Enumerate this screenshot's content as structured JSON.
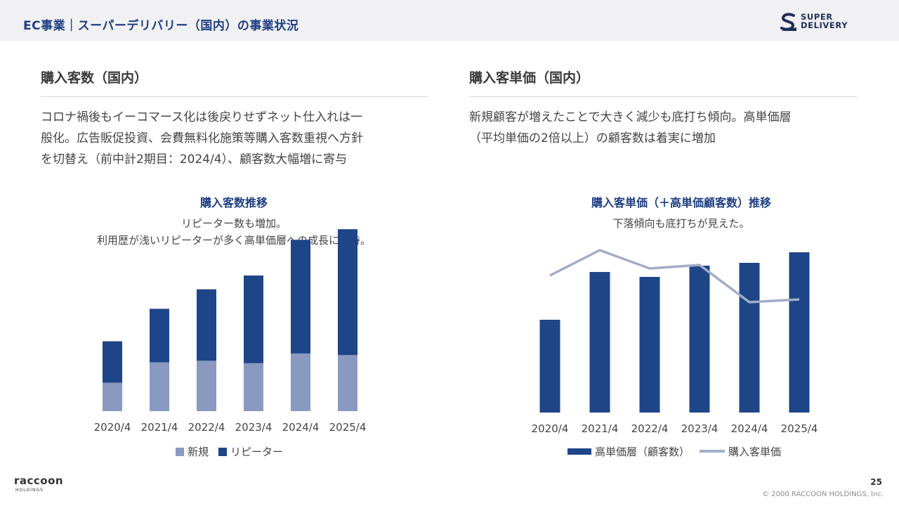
{
  "header": {
    "title": "EC事業｜スーパーデリバリー（国内）の事業状況",
    "brand_line1": "SUPER",
    "brand_line2": "DELIVERY"
  },
  "left": {
    "title": "購入客数（国内）",
    "description": [
      "コロナ禍後もイーコマース化は後戻りせずネット仕入れは一",
      "般化。広告販促投資、会費無料化施策等購入客数重視へ方針",
      "を切替え（前中計2期目：2024/4）、顧客数大幅増に寄与"
    ],
    "chart_title": "購入客数推移",
    "chart_subtitle": [
      "リピーター数も増加。",
      "利用歴が浅いリピーターが多く高単価層への成長に期待。"
    ]
  },
  "right": {
    "title": "購入客単価（国内）",
    "description": [
      "新規顧客が増えたことで大きく減少も底打ち傾向。高単価層",
      "（平均単価の2倍以上）の顧客数は着実に増加"
    ],
    "chart_title": "購入客単価（＋高単価顧客数）推移",
    "chart_subtitle": [
      "下落傾向も底打ちが見えた。"
    ]
  },
  "chart_data": [
    {
      "type": "bar",
      "stacked": true,
      "categories": [
        "2020/4",
        "2021/4",
        "2022/4",
        "2023/4",
        "2024/4",
        "2025/4"
      ],
      "series": [
        {
          "name": "新規",
          "values": [
            35,
            60,
            62,
            59,
            71,
            69
          ],
          "color": "#8a99c0"
        },
        {
          "name": "リピーター",
          "values": [
            51,
            66,
            88,
            108,
            140,
            155
          ],
          "color": "#1e4587"
        }
      ],
      "ylim": [
        0,
        225
      ],
      "grid": false,
      "legend": "bottom"
    },
    {
      "type": "bar",
      "categories": [
        "2020/4",
        "2021/4",
        "2022/4",
        "2023/4",
        "2024/4",
        "2025/4"
      ],
      "series": [
        {
          "name": "高単価層（顧客数）",
          "type": "bar",
          "values": [
            132,
            200,
            193,
            209,
            213,
            228
          ],
          "color": "#1e4587"
        },
        {
          "name": "購入客単価",
          "type": "line",
          "values": [
            195,
            231,
            205,
            210,
            157,
            161
          ],
          "color": "#a2adc8"
        }
      ],
      "ylim": [
        0,
        240
      ],
      "grid": false,
      "legend": "bottom"
    }
  ],
  "footer": {
    "page_number": "25",
    "copyright": "© 2000 RACCOON HOLDINGS, Inc.",
    "logo_main": "raccoon",
    "logo_sub": "HOLDINGS"
  }
}
